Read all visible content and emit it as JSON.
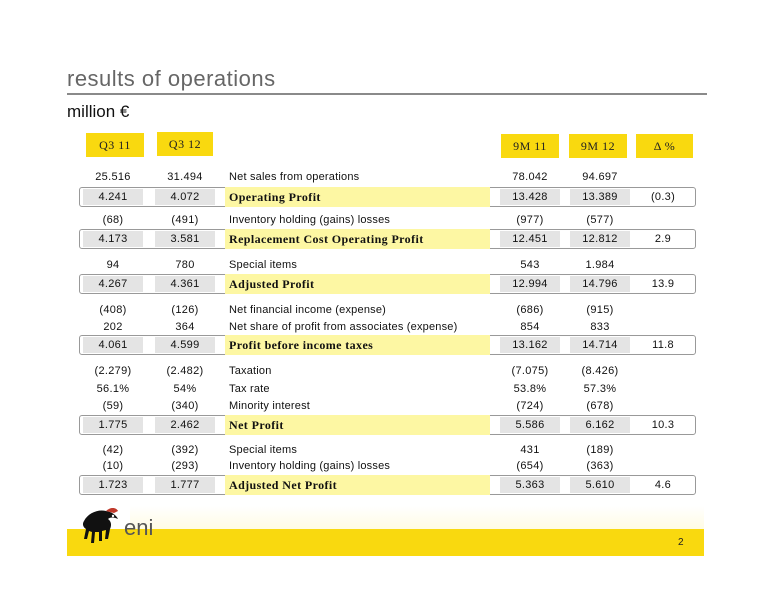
{
  "title": "results of operations",
  "subtitle": "million €",
  "headers": [
    "Q3 11",
    "Q3 12",
    "9M 11",
    "9M 12",
    "Δ %"
  ],
  "rows": [
    {
      "label": "Net sales from operations",
      "bold": false,
      "boxed": false,
      "q311": "25.516",
      "q312": "31.494",
      "m911": "78.042",
      "m912": "94.697",
      "delta": ""
    },
    {
      "label": "Operating Profit",
      "bold": true,
      "boxed": true,
      "q311": "4.241",
      "q312": "4.072",
      "m911": "13.428",
      "m912": "13.389",
      "delta": "(0.3)"
    },
    {
      "label": "Inventory holding (gains) losses",
      "bold": false,
      "boxed": false,
      "q311": "(68)",
      "q312": "(491)",
      "m911": "(977)",
      "m912": "(577)",
      "delta": ""
    },
    {
      "label": "Replacement Cost Operating Profit",
      "bold": true,
      "boxed": true,
      "q311": "4.173",
      "q312": "3.581",
      "m911": "12.451",
      "m912": "12.812",
      "delta": "2.9"
    },
    {
      "label": "Special items",
      "bold": false,
      "boxed": false,
      "q311": "94",
      "q312": "780",
      "m911": "543",
      "m912": "1.984",
      "delta": ""
    },
    {
      "label": "Adjusted Profit",
      "bold": true,
      "boxed": true,
      "q311": "4.267",
      "q312": "4.361",
      "m911": "12.994",
      "m912": "14.796",
      "delta": "13.9"
    },
    {
      "label": "Net financial income (expense)",
      "bold": false,
      "boxed": false,
      "q311": "(408)",
      "q312": "(126)",
      "m911": "(686)",
      "m912": "(915)",
      "delta": ""
    },
    {
      "label": "Net share of profit from associates (expense)",
      "bold": false,
      "boxed": false,
      "q311": "202",
      "q312": "364",
      "m911": "854",
      "m912": "833",
      "delta": ""
    },
    {
      "label": "Profit before income taxes",
      "bold": true,
      "boxed": true,
      "q311": "4.061",
      "q312": "4.599",
      "m911": "13.162",
      "m912": "14.714",
      "delta": "11.8"
    },
    {
      "label": "Taxation",
      "bold": false,
      "boxed": false,
      "q311": "(2.279)",
      "q312": "(2.482)",
      "m911": "(7.075)",
      "m912": "(8.426)",
      "delta": ""
    },
    {
      "label": "Tax rate",
      "bold": false,
      "boxed": false,
      "q311": "56.1%",
      "q312": "54%",
      "m911": "53.8%",
      "m912": "57.3%",
      "delta": ""
    },
    {
      "label": "Minority interest",
      "bold": false,
      "boxed": false,
      "q311": "(59)",
      "q312": "(340)",
      "m911": "(724)",
      "m912": "(678)",
      "delta": ""
    },
    {
      "label": "Net Profit",
      "bold": true,
      "boxed": true,
      "q311": "1.775",
      "q312": "2.462",
      "m911": "5.586",
      "m912": "6.162",
      "delta": "10.3"
    },
    {
      "label": "Special items",
      "bold": false,
      "boxed": false,
      "q311": "(42)",
      "q312": "(392)",
      "m911": "431",
      "m912": "(189)",
      "delta": ""
    },
    {
      "label": "Inventory holding (gains) losses",
      "bold": false,
      "boxed": false,
      "q311": "(10)",
      "q312": "(293)",
      "m911": "(654)",
      "m912": "(363)",
      "delta": ""
    },
    {
      "label": "Adjusted Net Profit",
      "bold": true,
      "boxed": true,
      "q311": "1.723",
      "q312": "1.777",
      "m911": "5.363",
      "m912": "5.610",
      "delta": "4.6"
    }
  ],
  "logo": {
    "text": "eni",
    "icon": "six-legged-dog-icon"
  },
  "page_number": "2"
}
